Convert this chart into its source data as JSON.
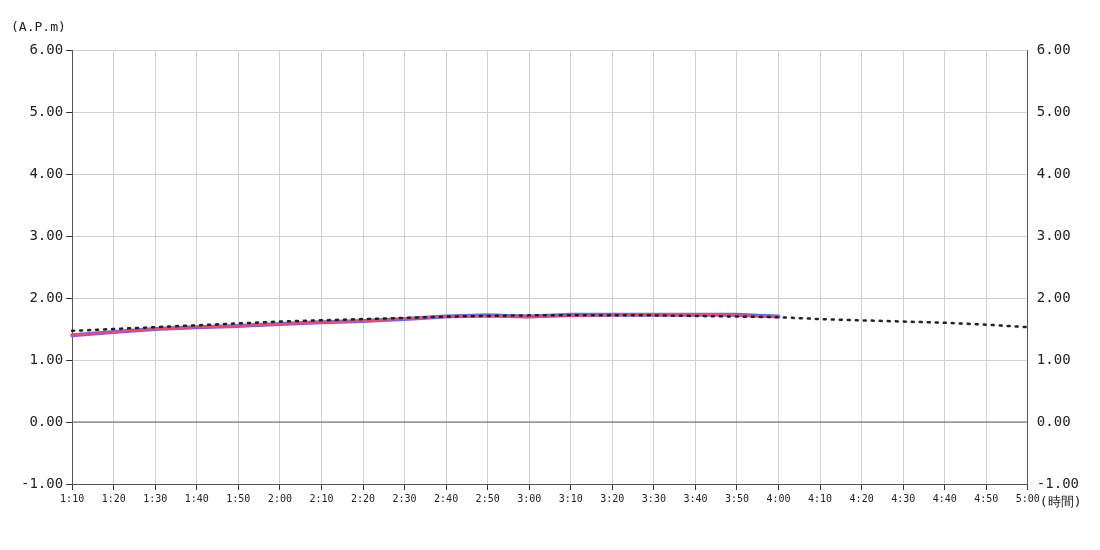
{
  "chart_data": {
    "type": "line",
    "xlabel": "(時間)",
    "ylabel": "(A.P.m)",
    "categories": [
      "1:10",
      "1:20",
      "1:30",
      "1:40",
      "1:50",
      "2:00",
      "2:10",
      "2:20",
      "2:30",
      "2:40",
      "2:50",
      "3:00",
      "3:10",
      "3:20",
      "3:30",
      "3:40",
      "3:50",
      "4:00",
      "4:10",
      "4:20",
      "4:30",
      "4:40",
      "4:50",
      "5:00"
    ],
    "series": [
      {
        "color": "#222222",
        "line_style": "dotted",
        "values": [
          1.47,
          1.5,
          1.53,
          1.56,
          1.59,
          1.62,
          1.64,
          1.66,
          1.68,
          1.7,
          1.71,
          1.72,
          1.72,
          1.72,
          1.72,
          1.71,
          1.7,
          1.69,
          1.66,
          1.64,
          1.62,
          1.6,
          1.57,
          1.53
        ]
      },
      {
        "color": "#6a6ae8",
        "line_style": "solid",
        "values": [
          1.4,
          1.45,
          1.5,
          1.53,
          1.55,
          1.58,
          1.61,
          1.63,
          1.66,
          1.7,
          1.72,
          1.7,
          1.73,
          1.73,
          1.73,
          1.73,
          1.73,
          1.7,
          null,
          null,
          null,
          null,
          null,
          null
        ]
      },
      {
        "color": "#ff4466",
        "line_style": "solid",
        "values": [
          1.4,
          1.45,
          1.5,
          1.53,
          1.55,
          1.58,
          1.61,
          1.63,
          1.67,
          1.7,
          1.7,
          1.69,
          1.71,
          1.72,
          1.74,
          1.74,
          1.72,
          1.7,
          null,
          null,
          null,
          null,
          null,
          null
        ]
      }
    ],
    "ylim": [
      -1,
      6
    ],
    "yticks": [
      {
        "value": -1,
        "label": "-1.00"
      },
      {
        "value": 0,
        "label": "0.00"
      },
      {
        "value": 1,
        "label": "1.00"
      },
      {
        "value": 2,
        "label": "2.00"
      },
      {
        "value": 3,
        "label": "3.00"
      },
      {
        "value": 4,
        "label": "4.00"
      },
      {
        "value": 5,
        "label": "5.00"
      },
      {
        "value": 6,
        "label": "6.00"
      }
    ],
    "y2lim": [
      -1,
      6
    ],
    "y2ticks": [
      {
        "value": -1,
        "label": "-1.00"
      },
      {
        "value": 0,
        "label": "0.00"
      },
      {
        "value": 1,
        "label": "1.00"
      },
      {
        "value": 2,
        "label": "2.00"
      },
      {
        "value": 3,
        "label": "3.00"
      },
      {
        "value": 4,
        "label": "4.00"
      },
      {
        "value": 5,
        "label": "5.00"
      },
      {
        "value": 6,
        "label": "6.00"
      }
    ],
    "ref_lines": [
      {
        "axis": "y",
        "value": 0,
        "color": "#666666"
      }
    ],
    "grid": true,
    "marker": "none",
    "legend": false
  }
}
